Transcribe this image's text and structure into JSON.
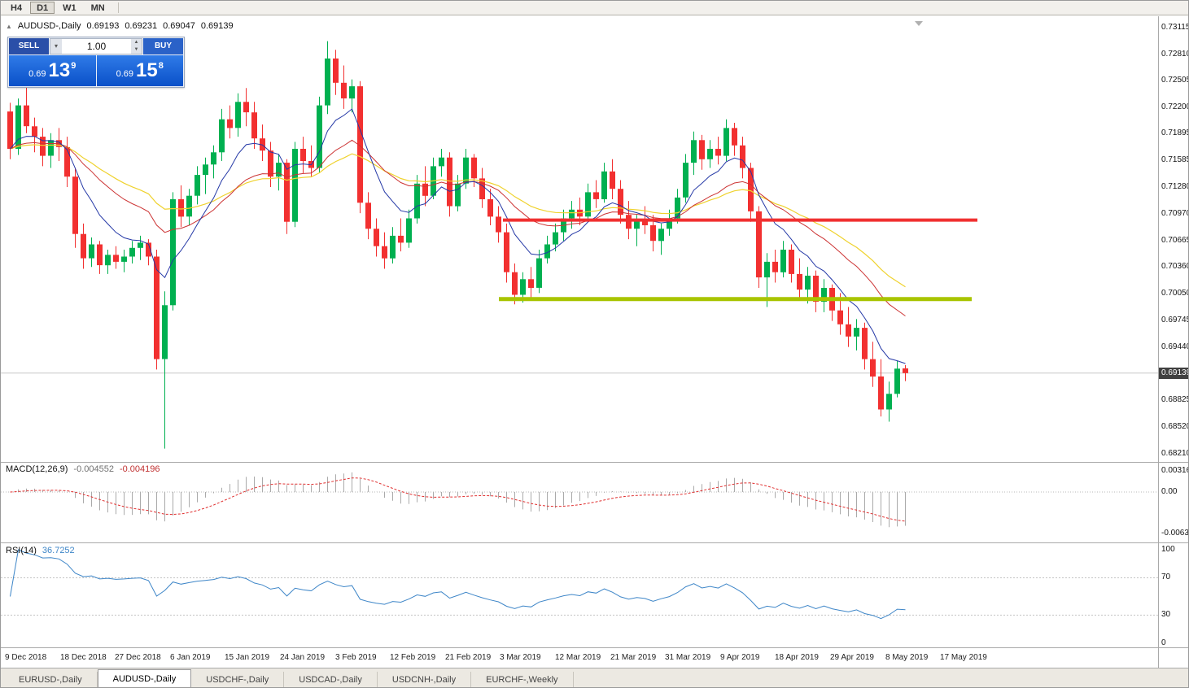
{
  "window": {
    "periods": [
      "H4",
      "D1",
      "W1",
      "MN"
    ],
    "active_period": "D1"
  },
  "header": {
    "collapse_icon": "▲",
    "title": "AUDUSD-,Daily",
    "open": "0.69193",
    "high": "0.69231",
    "low": "0.69047",
    "close": "0.69139"
  },
  "trade_panel": {
    "sell_label": "SELL",
    "buy_label": "BUY",
    "volume": "1.00",
    "sell_price": {
      "prefix": "0.69",
      "big": "13",
      "sup": "9"
    },
    "buy_price": {
      "prefix": "0.69",
      "big": "15",
      "sup": "8"
    }
  },
  "price_scale": {
    "labels": [
      "0.73115",
      "0.72810",
      "0.72505",
      "0.72200",
      "0.71895",
      "0.71585",
      "0.71280",
      "0.70970",
      "0.70665",
      "0.70360",
      "0.70050",
      "0.69745",
      "0.69440",
      "0.68825",
      "0.68520",
      "0.68210"
    ],
    "current": "0.69139"
  },
  "indicators": {
    "macd": {
      "label": "MACD(12,26,9)",
      "value_main": "-0.004552",
      "value_signal": "-0.004196",
      "scale": [
        "0.003164",
        "0.00",
        "-0.006317"
      ]
    },
    "rsi": {
      "label": "RSI(14)",
      "value": "36.7252",
      "scale": [
        "100",
        "70",
        "30",
        "0"
      ]
    }
  },
  "bottom_tabs": {
    "active_index": 1,
    "tabs": [
      "EURUSD-,Daily",
      "AUDUSD-,Daily",
      "USDCHF-,Daily",
      "USDCAD-,Daily",
      "USDCNH-,Daily",
      "EURCHF-,Weekly"
    ]
  },
  "colors": {
    "bull": "#00B050",
    "bear": "#F23030",
    "ma_fast": "#2438A6",
    "ma_mid": "#CC3333",
    "ma_slow": "#EFD22E",
    "macd_bars": "#AAAAAA",
    "macd_signal": "#E03030",
    "rsi_line": "#3E86C8",
    "resistance_line": "#F03030",
    "support_line": "#A8C400",
    "price_badge_bg": "#404040",
    "accent_blue": "#0A50C8"
  },
  "chart_data": {
    "type": "candlestick",
    "title": "AUDUSD Daily",
    "ylim": [
      0.6821,
      0.73115
    ],
    "current_price": 0.69139,
    "x_labels": [
      "9 Dec 2018",
      "18 Dec 2018",
      "27 Dec 2018",
      "6 Jan 2019",
      "15 Jan 2019",
      "24 Jan 2019",
      "3 Feb 2019",
      "12 Feb 2019",
      "21 Feb 2019",
      "3 Mar 2019",
      "12 Mar 2019",
      "21 Mar 2019",
      "31 Mar 2019",
      "9 Apr 2019",
      "18 Apr 2019",
      "29 Apr 2019",
      "8 May 2019",
      "17 May 2019"
    ],
    "overlays": {
      "horizontal_lines": [
        {
          "name": "resistance",
          "price": 0.709,
          "color": "#F03030"
        },
        {
          "name": "support",
          "price": 0.6999,
          "color": "#A8C400"
        }
      ],
      "moving_averages": [
        "fast-blue",
        "medium-red",
        "slow-yellow"
      ]
    },
    "sub_indicators": [
      "MACD(12,26,9)",
      "RSI(14)"
    ],
    "candles": [
      [
        0.7215,
        0.7225,
        0.716,
        0.7172
      ],
      [
        0.7172,
        0.723,
        0.7165,
        0.7222
      ],
      [
        0.7222,
        0.7252,
        0.719,
        0.7198
      ],
      [
        0.7198,
        0.7208,
        0.7168,
        0.7186
      ],
      [
        0.7186,
        0.7196,
        0.7152,
        0.7164
      ],
      [
        0.7164,
        0.719,
        0.715,
        0.7182
      ],
      [
        0.7182,
        0.7196,
        0.7158,
        0.7174
      ],
      [
        0.7174,
        0.7186,
        0.7128,
        0.714
      ],
      [
        0.714,
        0.715,
        0.7058,
        0.7074
      ],
      [
        0.7074,
        0.7086,
        0.7034,
        0.7046
      ],
      [
        0.7046,
        0.707,
        0.7036,
        0.7062
      ],
      [
        0.7062,
        0.7066,
        0.7028,
        0.7038
      ],
      [
        0.7038,
        0.7056,
        0.7028,
        0.705
      ],
      [
        0.705,
        0.706,
        0.7034,
        0.7042
      ],
      [
        0.7042,
        0.7056,
        0.703,
        0.7048
      ],
      [
        0.7048,
        0.7066,
        0.704,
        0.7058
      ],
      [
        0.7058,
        0.7072,
        0.7044,
        0.7064
      ],
      [
        0.7064,
        0.7068,
        0.7038,
        0.7048
      ],
      [
        0.7048,
        0.7056,
        0.6918,
        0.693
      ],
      [
        0.693,
        0.7008,
        0.6827,
        0.6992
      ],
      [
        0.6992,
        0.7122,
        0.6986,
        0.7114
      ],
      [
        0.7114,
        0.713,
        0.7082,
        0.7094
      ],
      [
        0.7094,
        0.7126,
        0.7084,
        0.7118
      ],
      [
        0.7118,
        0.7152,
        0.7108,
        0.7142
      ],
      [
        0.7142,
        0.7162,
        0.712,
        0.7154
      ],
      [
        0.7154,
        0.7176,
        0.7138,
        0.7168
      ],
      [
        0.7168,
        0.7218,
        0.7158,
        0.7206
      ],
      [
        0.7206,
        0.7222,
        0.7184,
        0.7196
      ],
      [
        0.7196,
        0.7236,
        0.7186,
        0.7226
      ],
      [
        0.7226,
        0.7242,
        0.7198,
        0.7214
      ],
      [
        0.7214,
        0.7226,
        0.7172,
        0.7184
      ],
      [
        0.7184,
        0.72,
        0.7158,
        0.717
      ],
      [
        0.717,
        0.718,
        0.7128,
        0.714
      ],
      [
        0.714,
        0.7166,
        0.7124,
        0.7156
      ],
      [
        0.7156,
        0.716,
        0.7074,
        0.7088
      ],
      [
        0.7088,
        0.718,
        0.7082,
        0.7172
      ],
      [
        0.7172,
        0.7186,
        0.7144,
        0.7158
      ],
      [
        0.7158,
        0.7176,
        0.714,
        0.715
      ],
      [
        0.715,
        0.7232,
        0.7144,
        0.7222
      ],
      [
        0.7222,
        0.7296,
        0.7212,
        0.7276
      ],
      [
        0.7276,
        0.7286,
        0.7234,
        0.7248
      ],
      [
        0.7248,
        0.7268,
        0.7218,
        0.723
      ],
      [
        0.723,
        0.7252,
        0.7214,
        0.7244
      ],
      [
        0.7244,
        0.725,
        0.7098,
        0.711
      ],
      [
        0.711,
        0.7122,
        0.7068,
        0.708
      ],
      [
        0.708,
        0.7092,
        0.7048,
        0.706
      ],
      [
        0.706,
        0.7076,
        0.7034,
        0.7046
      ],
      [
        0.7046,
        0.7082,
        0.704,
        0.7072
      ],
      [
        0.7072,
        0.7092,
        0.7054,
        0.7064
      ],
      [
        0.7064,
        0.7102,
        0.7058,
        0.7092
      ],
      [
        0.7092,
        0.7142,
        0.7086,
        0.7132
      ],
      [
        0.7132,
        0.7152,
        0.7106,
        0.7118
      ],
      [
        0.7118,
        0.7162,
        0.7114,
        0.7152
      ],
      [
        0.7152,
        0.7172,
        0.714,
        0.7162
      ],
      [
        0.7162,
        0.7168,
        0.7094,
        0.7106
      ],
      [
        0.7106,
        0.7142,
        0.71,
        0.7132
      ],
      [
        0.7132,
        0.7172,
        0.7126,
        0.7162
      ],
      [
        0.7162,
        0.7166,
        0.7128,
        0.7138
      ],
      [
        0.7138,
        0.715,
        0.7104,
        0.7114
      ],
      [
        0.7114,
        0.7126,
        0.7084,
        0.7094
      ],
      [
        0.7094,
        0.7106,
        0.7064,
        0.7076
      ],
      [
        0.7076,
        0.7086,
        0.7018,
        0.703
      ],
      [
        0.703,
        0.704,
        0.6993,
        0.7004
      ],
      [
        0.7004,
        0.703,
        0.6995,
        0.7022
      ],
      [
        0.7022,
        0.7036,
        0.7,
        0.7012
      ],
      [
        0.7012,
        0.7056,
        0.7006,
        0.7046
      ],
      [
        0.7046,
        0.7072,
        0.704,
        0.7062
      ],
      [
        0.7062,
        0.7086,
        0.7054,
        0.7076
      ],
      [
        0.7076,
        0.7102,
        0.7066,
        0.7092
      ],
      [
        0.7092,
        0.7112,
        0.708,
        0.7102
      ],
      [
        0.7102,
        0.7116,
        0.7084,
        0.7094
      ],
      [
        0.7094,
        0.7132,
        0.709,
        0.7122
      ],
      [
        0.7122,
        0.7136,
        0.7104,
        0.7114
      ],
      [
        0.7114,
        0.7156,
        0.711,
        0.7146
      ],
      [
        0.7146,
        0.716,
        0.7114,
        0.7126
      ],
      [
        0.7126,
        0.7136,
        0.7086,
        0.7096
      ],
      [
        0.7096,
        0.7112,
        0.7068,
        0.708
      ],
      [
        0.708,
        0.7096,
        0.706,
        0.709
      ],
      [
        0.709,
        0.7106,
        0.7074,
        0.7084
      ],
      [
        0.7084,
        0.7096,
        0.7054,
        0.7066
      ],
      [
        0.7066,
        0.7086,
        0.705,
        0.708
      ],
      [
        0.708,
        0.7102,
        0.7072,
        0.7092
      ],
      [
        0.7092,
        0.7126,
        0.7086,
        0.7116
      ],
      [
        0.7116,
        0.7166,
        0.711,
        0.7156
      ],
      [
        0.7156,
        0.7192,
        0.7142,
        0.7182
      ],
      [
        0.7182,
        0.7188,
        0.7148,
        0.716
      ],
      [
        0.716,
        0.7182,
        0.715,
        0.7172
      ],
      [
        0.7172,
        0.7186,
        0.7154,
        0.7164
      ],
      [
        0.7164,
        0.7206,
        0.7158,
        0.7196
      ],
      [
        0.7196,
        0.7202,
        0.7164,
        0.7176
      ],
      [
        0.7176,
        0.7186,
        0.7138,
        0.715
      ],
      [
        0.715,
        0.7156,
        0.7088,
        0.71
      ],
      [
        0.71,
        0.7106,
        0.7012,
        0.7024
      ],
      [
        0.7024,
        0.7052,
        0.699,
        0.7042
      ],
      [
        0.7042,
        0.7056,
        0.7018,
        0.703
      ],
      [
        0.703,
        0.7066,
        0.7024,
        0.7056
      ],
      [
        0.7056,
        0.7062,
        0.7018,
        0.7028
      ],
      [
        0.7028,
        0.7046,
        0.6998,
        0.701
      ],
      [
        0.701,
        0.7036,
        0.6994,
        0.7026
      ],
      [
        0.7026,
        0.7032,
        0.6984,
        0.6996
      ],
      [
        0.6996,
        0.7022,
        0.6984,
        0.7012
      ],
      [
        0.7012,
        0.7016,
        0.6974,
        0.6986
      ],
      [
        0.6986,
        0.7006,
        0.6958,
        0.697
      ],
      [
        0.697,
        0.699,
        0.6944,
        0.6956
      ],
      [
        0.6956,
        0.6976,
        0.694,
        0.6966
      ],
      [
        0.6966,
        0.6972,
        0.6918,
        0.693
      ],
      [
        0.693,
        0.695,
        0.6898,
        0.691
      ],
      [
        0.691,
        0.693,
        0.6864,
        0.6872
      ],
      [
        0.6872,
        0.6904,
        0.6858,
        0.689
      ],
      [
        0.689,
        0.6928,
        0.6886,
        0.6919
      ],
      [
        0.69193,
        0.69231,
        0.69047,
        0.69139
      ]
    ]
  }
}
